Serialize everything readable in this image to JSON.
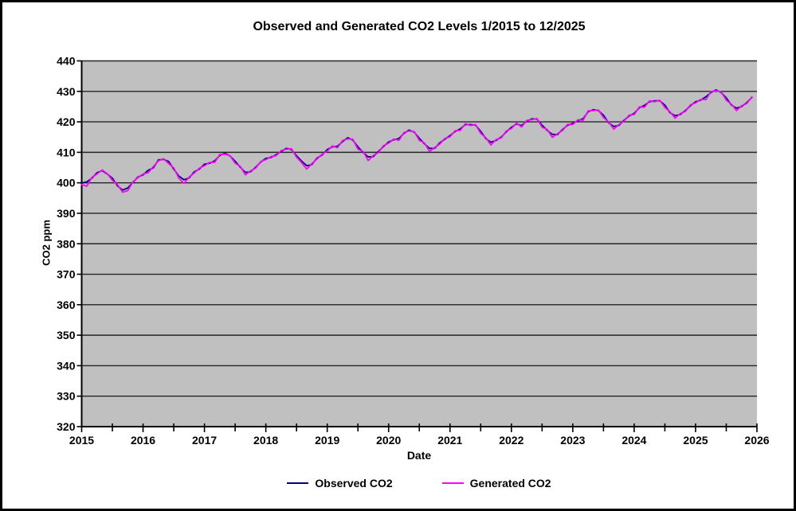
{
  "window": {
    "background": "#ffffff",
    "border_color": "#000000"
  },
  "chart_data": {
    "type": "line",
    "title": "Observed and Generated CO2 Levels 1/2015 to 12/2025",
    "xlabel": "Date",
    "ylabel": "CO2 ppm",
    "xlim": [
      2015,
      2026
    ],
    "ylim": [
      320,
      440
    ],
    "y_tick_step": 10,
    "y_ticks": [
      320,
      330,
      340,
      350,
      360,
      370,
      380,
      390,
      400,
      410,
      420,
      430,
      440
    ],
    "x_ticks": [
      2015,
      2016,
      2017,
      2018,
      2019,
      2020,
      2021,
      2022,
      2023,
      2024,
      2025,
      2026
    ],
    "x_minor_tick_step": 0.5,
    "grid": true,
    "legend_position": "bottom",
    "plot_bg": "#C0C0C0",
    "gridline_color": "#262626",
    "axis_color": "#000000",
    "x_start_year": 2015,
    "points_per_year": 12,
    "n_points": 132,
    "series": [
      {
        "name": "Observed CO2",
        "color": "#000080",
        "values": [
          399.9,
          400.3,
          401.5,
          403.3,
          404.0,
          402.9,
          401.5,
          399.0,
          397.6,
          398.3,
          400.1,
          401.9,
          402.6,
          404.1,
          404.9,
          407.5,
          407.7,
          407.0,
          404.5,
          402.2,
          401.0,
          401.6,
          403.6,
          404.5,
          406.1,
          406.4,
          407.2,
          409.0,
          409.7,
          408.8,
          407.1,
          405.1,
          403.4,
          403.6,
          405.1,
          406.8,
          408.0,
          408.3,
          409.2,
          410.3,
          411.3,
          410.9,
          408.9,
          407.1,
          405.6,
          406.0,
          408.1,
          409.1,
          410.9,
          411.8,
          412.0,
          413.5,
          414.8,
          414.0,
          411.8,
          410.0,
          408.5,
          408.6,
          410.3,
          411.9,
          413.4,
          414.1,
          414.5,
          416.2,
          417.3,
          416.6,
          414.6,
          412.8,
          411.3,
          411.3,
          413.1,
          414.3,
          415.5,
          416.8,
          417.7,
          419.1,
          419.1,
          418.9,
          416.9,
          414.5,
          413.3,
          413.9,
          415.0,
          416.7,
          418.2,
          419.3,
          418.8,
          420.2,
          421.0,
          420.9,
          418.9,
          417.2,
          415.9,
          415.8,
          417.5,
          418.9,
          419.5,
          420.4,
          421.0,
          423.3,
          424.0,
          423.7,
          422.2,
          419.7,
          418.5,
          418.8,
          420.5,
          421.9,
          422.8,
          424.6,
          425.4,
          426.6,
          426.9,
          426.9,
          425.5,
          423.0,
          422.0,
          422.4,
          423.7,
          425.3,
          426.6,
          427.1,
          428.2,
          429.6,
          430.5,
          429.6,
          427.9,
          425.5,
          424.5,
          425.0,
          426.3,
          428.0
        ]
      },
      {
        "name": "Generated CO2",
        "color": "#FF00FF",
        "values": [
          399.4,
          398.9,
          401.8,
          402.9,
          404.2,
          403.0,
          400.8,
          399.4,
          396.9,
          397.4,
          400.3,
          401.7,
          402.9,
          403.3,
          405.3,
          407.2,
          407.9,
          406.3,
          404.9,
          401.5,
          399.8,
          401.9,
          403.2,
          404.8,
          405.6,
          406.7,
          406.7,
          409.3,
          409.4,
          408.9,
          406.4,
          405.4,
          402.6,
          403.9,
          404.8,
          407.0,
          407.6,
          408.6,
          408.9,
          410.6,
          411.0,
          411.2,
          408.4,
          406.6,
          404.5,
          406.3,
          407.8,
          409.4,
          410.4,
          412.1,
          411.5,
          413.9,
          414.4,
          414.3,
          411.0,
          410.3,
          407.3,
          409.0,
          409.9,
          412.2,
          413.0,
          414.4,
          413.9,
          416.5,
          417.0,
          416.8,
          413.9,
          413.1,
          410.3,
          411.6,
          412.7,
          414.6,
          415.1,
          417.1,
          417.2,
          419.4,
          418.8,
          419.1,
          416.2,
          414.8,
          412.4,
          414.2,
          414.7,
          417.0,
          417.8,
          419.6,
          418.3,
          420.5,
          420.7,
          421.1,
          418.2,
          417.5,
          414.9,
          416.1,
          417.2,
          419.2,
          419.1,
          420.7,
          420.5,
          423.6,
          423.7,
          423.9,
          421.4,
          420.0,
          417.6,
          419.1,
          420.2,
          422.2,
          422.4,
          424.9,
          424.8,
          426.9,
          426.6,
          427.1,
          424.7,
          423.3,
          421.2,
          422.7,
          423.4,
          425.6,
          426.2,
          427.4,
          427.3,
          429.9,
          430.2,
          429.8,
          427.1,
          425.8,
          423.7,
          425.3,
          426.0,
          428.2
        ]
      }
    ]
  }
}
